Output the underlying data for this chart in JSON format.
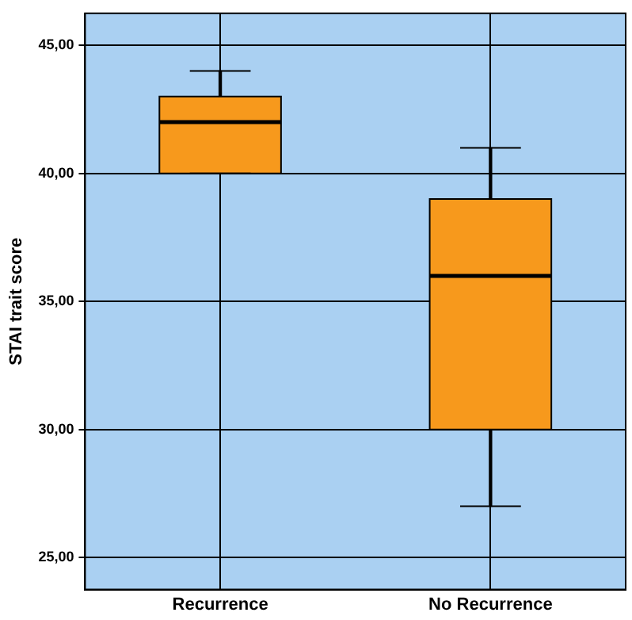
{
  "chart_data": {
    "type": "box",
    "ylabel": "STAI trait score",
    "categories": [
      "Recurrence",
      "No Recurrence"
    ],
    "boxes": [
      {
        "low": 40,
        "q1": 40,
        "median": 42,
        "q3": 43,
        "high": 44
      },
      {
        "low": 27,
        "q1": 30,
        "median": 36,
        "q3": 39,
        "high": 41
      }
    ],
    "color": "#f7991c",
    "ylim": [
      23.75,
      46.25
    ],
    "yticks": [
      {
        "value": 25,
        "label": "25,00"
      },
      {
        "value": 30,
        "label": "30,00"
      },
      {
        "value": 35,
        "label": "35,00"
      },
      {
        "value": 40,
        "label": "40,00"
      },
      {
        "value": 45,
        "label": "45,00"
      }
    ],
    "grid": true
  }
}
